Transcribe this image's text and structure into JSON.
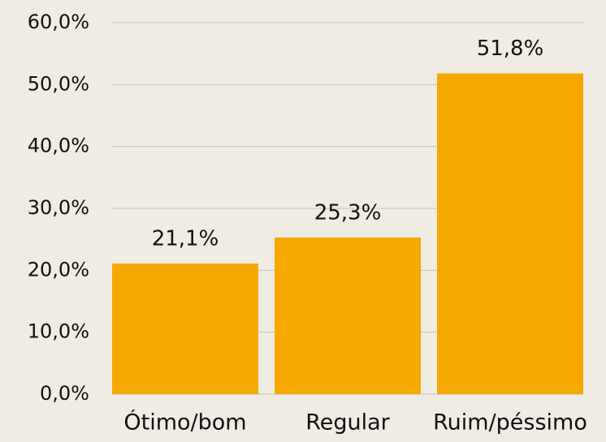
{
  "chart_data": {
    "type": "bar",
    "categories": [
      "Ótimo/bom",
      "Regular",
      "Ruim/péssimo"
    ],
    "values": [
      21.1,
      25.3,
      51.8
    ],
    "value_labels": [
      "21,1%",
      "25,3%",
      "51,8%"
    ],
    "color": "#f5a800",
    "ylim": [
      0,
      60
    ],
    "yticks": [
      {
        "value": 0,
        "label": "0,0%"
      },
      {
        "value": 10,
        "label": "10,0%"
      },
      {
        "value": 20,
        "label": "20,0%"
      },
      {
        "value": 30,
        "label": "30,0%"
      },
      {
        "value": 40,
        "label": "40,0%"
      },
      {
        "value": 50,
        "label": "50,0%"
      },
      {
        "value": 60,
        "label": "60,0%"
      }
    ],
    "grid": true
  }
}
